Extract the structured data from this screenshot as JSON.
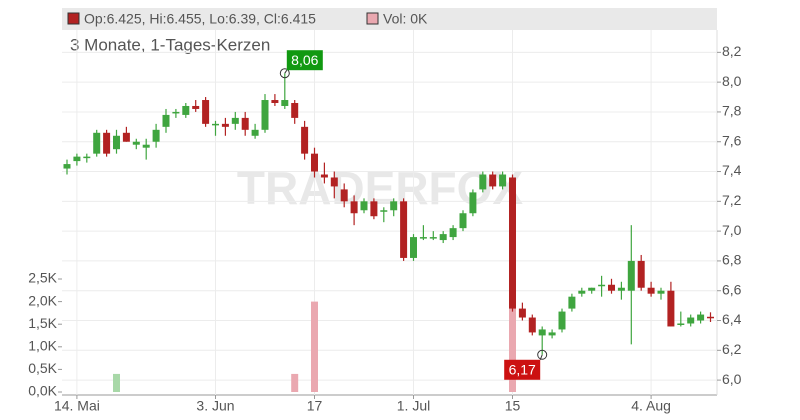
{
  "chart_data": {
    "type": "candlestick",
    "header_ohlc": "Op:6.425, Hi:6.455, Lo:6.39, Cl:6.415",
    "header_volume": "Vol: 0K",
    "subtitle": "3 Monate, 1-Tages-Kerzen",
    "watermark": "TRADERFOX",
    "categories": [
      null,
      "14. Mai",
      null,
      null,
      null,
      null,
      null,
      null,
      null,
      null,
      null,
      null,
      null,
      null,
      null,
      "3. Jun",
      null,
      null,
      null,
      null,
      null,
      null,
      null,
      null,
      null,
      "17",
      null,
      null,
      null,
      null,
      null,
      null,
      null,
      null,
      null,
      "1. Jul",
      null,
      null,
      null,
      null,
      null,
      null,
      null,
      null,
      null,
      "15",
      null,
      null,
      null,
      null,
      null,
      null,
      null,
      null,
      null,
      null,
      null,
      null,
      null,
      "4. Aug",
      null,
      null,
      null,
      null,
      null,
      null
    ],
    "open": [
      7.42,
      7.47,
      7.5,
      7.52,
      7.66,
      7.55,
      7.66,
      7.58,
      7.56,
      7.6,
      7.7,
      7.8,
      7.78,
      7.84,
      7.88,
      7.72,
      7.72,
      7.72,
      7.76,
      7.64,
      7.68,
      7.88,
      7.84,
      7.86,
      7.7,
      7.52,
      7.38,
      7.36,
      7.28,
      7.2,
      7.14,
      7.2,
      7.14,
      7.14,
      7.2,
      6.82,
      6.96,
      6.96,
      6.94,
      6.96,
      7.02,
      7.12,
      7.28,
      7.38,
      7.3,
      7.36,
      6.48,
      6.42,
      6.3,
      6.3,
      6.34,
      6.48,
      6.58,
      6.6,
      6.64,
      6.64,
      6.6,
      6.6,
      6.8,
      6.62,
      6.58,
      6.6,
      6.38,
      6.38,
      6.4,
      6.425
    ],
    "high": [
      7.48,
      7.52,
      7.52,
      7.68,
      7.68,
      7.68,
      7.7,
      7.62,
      7.62,
      7.72,
      7.82,
      7.82,
      7.86,
      7.88,
      7.9,
      7.74,
      7.76,
      7.8,
      7.8,
      7.72,
      7.92,
      7.92,
      8.06,
      7.88,
      7.74,
      7.56,
      7.46,
      7.4,
      7.32,
      7.24,
      7.22,
      7.22,
      7.16,
      7.22,
      7.22,
      6.98,
      7.04,
      7.0,
      7.0,
      7.04,
      7.14,
      7.28,
      7.4,
      7.4,
      7.4,
      7.38,
      6.52,
      6.44,
      6.36,
      6.34,
      6.48,
      6.58,
      6.62,
      6.62,
      6.7,
      6.68,
      6.66,
      7.04,
      6.84,
      6.66,
      6.62,
      6.66,
      6.46,
      6.44,
      6.46,
      6.455
    ],
    "low": [
      7.38,
      7.44,
      7.46,
      7.5,
      7.5,
      7.52,
      7.6,
      7.55,
      7.48,
      7.56,
      7.66,
      7.76,
      7.76,
      7.8,
      7.7,
      7.64,
      7.64,
      7.68,
      7.64,
      7.62,
      7.66,
      7.84,
      7.82,
      7.72,
      7.48,
      7.36,
      7.32,
      7.22,
      7.16,
      7.04,
      7.12,
      7.08,
      7.06,
      7.1,
      6.8,
      6.8,
      6.94,
      6.94,
      6.92,
      6.94,
      7.0,
      7.1,
      7.26,
      7.28,
      7.28,
      6.46,
      6.4,
      6.3,
      6.17,
      6.28,
      6.32,
      6.46,
      6.56,
      6.58,
      6.56,
      6.58,
      6.54,
      6.24,
      6.6,
      6.56,
      6.54,
      6.36,
      6.36,
      6.36,
      6.38,
      6.39
    ],
    "close": [
      7.45,
      7.5,
      7.5,
      7.66,
      7.52,
      7.64,
      7.6,
      7.6,
      7.58,
      7.68,
      7.78,
      7.8,
      7.84,
      7.82,
      7.72,
      7.72,
      7.7,
      7.76,
      7.68,
      7.68,
      7.88,
      7.86,
      7.88,
      7.76,
      7.52,
      7.4,
      7.36,
      7.3,
      7.2,
      7.12,
      7.2,
      7.1,
      7.14,
      7.2,
      6.82,
      6.96,
      6.96,
      6.96,
      6.98,
      7.02,
      7.12,
      7.26,
      7.38,
      7.3,
      7.38,
      6.48,
      6.42,
      6.32,
      6.34,
      6.32,
      6.46,
      6.56,
      6.6,
      6.62,
      6.64,
      6.6,
      6.62,
      6.8,
      6.62,
      6.58,
      6.6,
      6.36,
      6.38,
      6.42,
      6.44,
      6.415
    ],
    "volume": [
      0,
      0,
      0,
      0,
      0,
      400,
      0,
      0,
      0,
      0,
      0,
      0,
      0,
      0,
      0,
      0,
      0,
      0,
      0,
      0,
      0,
      0,
      0,
      400,
      0,
      2000,
      0,
      0,
      0,
      0,
      0,
      0,
      0,
      0,
      0,
      0,
      0,
      0,
      0,
      0,
      0,
      0,
      0,
      0,
      0,
      1900,
      0,
      0,
      0,
      0,
      0,
      0,
      0,
      0,
      0,
      0,
      0,
      0,
      0,
      0,
      0,
      0,
      0,
      0,
      0,
      0
    ],
    "up_color": "#3fa53f",
    "down_color": "#b22222",
    "up_volume_color": "#a8d8a8",
    "down_volume_color": "#eaa8b0",
    "ylim": [
      5.9,
      8.35
    ],
    "yticks": [
      {
        "value": 6.0,
        "label": "6,0"
      },
      {
        "value": 6.2,
        "label": "6,2"
      },
      {
        "value": 6.4,
        "label": "6,4"
      },
      {
        "value": 6.6,
        "label": "6,6"
      },
      {
        "value": 6.8,
        "label": "6,8"
      },
      {
        "value": 7.0,
        "label": "7,0"
      },
      {
        "value": 7.2,
        "label": "7,2"
      },
      {
        "value": 7.4,
        "label": "7,4"
      },
      {
        "value": 7.6,
        "label": "7,6"
      },
      {
        "value": 7.8,
        "label": "7,8"
      },
      {
        "value": 8.0,
        "label": "8,0"
      },
      {
        "value": 8.2,
        "label": "8,2"
      }
    ],
    "volume_yticks": [
      {
        "value": 0,
        "label": "0,0K"
      },
      {
        "value": 500,
        "label": "0,5K"
      },
      {
        "value": 1000,
        "label": "1,0K"
      },
      {
        "value": 1500,
        "label": "1,5K"
      },
      {
        "value": 2000,
        "label": "2,0K"
      },
      {
        "value": 2500,
        "label": "2,5K"
      }
    ],
    "annotations": [
      {
        "label": "8,06",
        "value": 8.06,
        "color": "#119911"
      },
      {
        "label": "6,17",
        "value": 6.17,
        "color": "#cc1111"
      }
    ],
    "grid": true
  }
}
